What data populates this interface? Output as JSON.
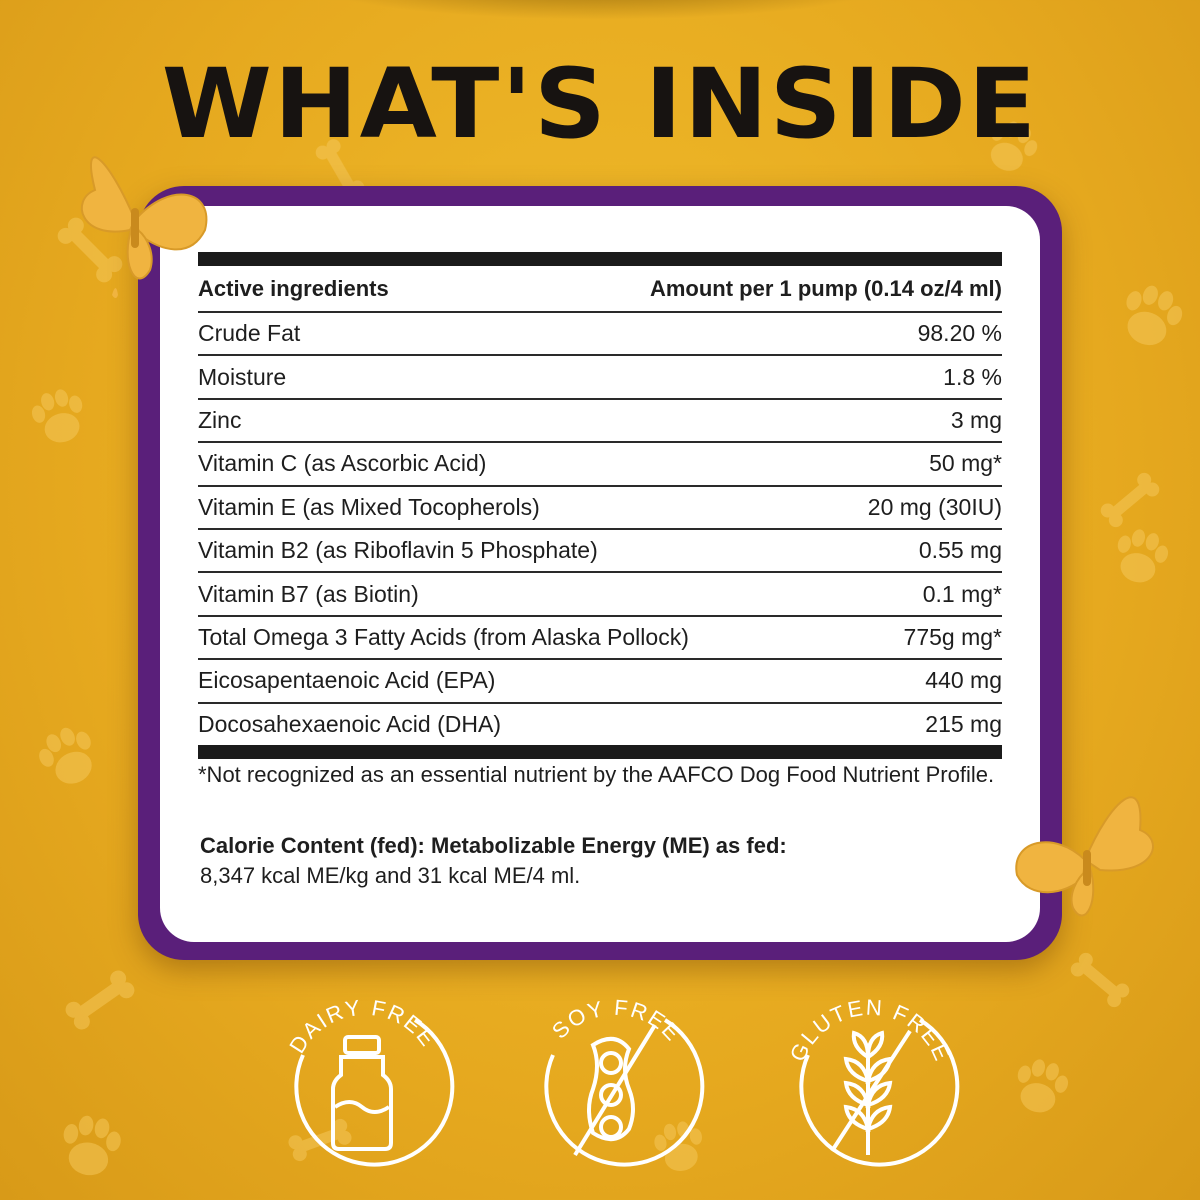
{
  "title": "WHAT'S INSIDE",
  "table": {
    "header_left": "Active ingredients",
    "header_right": "Amount per 1 pump (0.14 oz/4 ml)",
    "rows": [
      {
        "name": "Crude Fat",
        "amount": "98.20 %"
      },
      {
        "name": "Moisture",
        "amount": "1.8 %"
      },
      {
        "name": "Zinc",
        "amount": "3 mg"
      },
      {
        "name": "Vitamin C (as Ascorbic Acid)",
        "amount": "50 mg*"
      },
      {
        "name": "Vitamin E (as Mixed Tocopherols)",
        "amount": "20 mg (30IU)"
      },
      {
        "name": "Vitamin B2 (as Riboflavin 5 Phosphate)",
        "amount": "0.55 mg"
      },
      {
        "name": "Vitamin B7 (as Biotin)",
        "amount": "0.1 mg*"
      },
      {
        "name": "Total Omega 3 Fatty Acids (from Alaska Pollock)",
        "amount": "775g mg*"
      },
      {
        "name": "Eicosapentaenoic Acid (EPA)",
        "amount": "440 mg"
      },
      {
        "name": "Docosahexaenoic Acid (DHA)",
        "amount": "215 mg"
      }
    ]
  },
  "footnote": "*Not recognized as an essential nutrient by the AAFCO Dog Food Nutrient Profile.",
  "calorie": {
    "label": "Calorie Content (fed): Metabolizable Energy (ME) as fed:",
    "value": "8,347 kcal ME/kg and 31 kcal ME/4 ml."
  },
  "badges": [
    {
      "label": "DAIRY FREE",
      "icon": "bottle-icon"
    },
    {
      "label": "SOY FREE",
      "icon": "soybean-icon"
    },
    {
      "label": "GLUTEN FREE",
      "icon": "wheat-icon"
    }
  ],
  "colors": {
    "background": "#e9ab22",
    "frame": "#5a1f7a",
    "card": "#ffffff",
    "title": "#171311",
    "butterfly": "#f0b440"
  }
}
